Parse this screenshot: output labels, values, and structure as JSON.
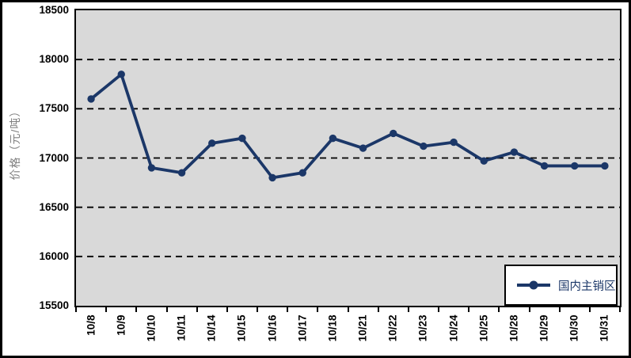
{
  "chart_data": {
    "type": "line",
    "title": "",
    "xlabel": "",
    "ylabel": "价格（元/吨）",
    "ylim": [
      15500,
      18500
    ],
    "ytick_step": 500,
    "yticks": [
      "18500",
      "18000",
      "17500",
      "17000",
      "16500",
      "16000",
      "15500"
    ],
    "categories": [
      "10/8",
      "10/9",
      "10/10",
      "10/11",
      "10/14",
      "10/15",
      "10/16",
      "10/17",
      "10/18",
      "10/21",
      "10/22",
      "10/23",
      "10/24",
      "10/25",
      "10/28",
      "10/29",
      "10/30",
      "10/31"
    ],
    "series": [
      {
        "name": "国内主销区",
        "color": "#1B3768",
        "values": [
          17600,
          17850,
          16900,
          16850,
          17150,
          17200,
          16800,
          16850,
          17200,
          17100,
          17250,
          17120,
          17160,
          16970,
          17060,
          16920,
          16920,
          16920
        ]
      }
    ],
    "grid": "horizontal-dashed",
    "gridline_color": "#000000",
    "plot_background": "#D9D9D9",
    "axis_color": "#000000",
    "ylabel_color": "#808080",
    "legend_position": "bottom-right-inside",
    "legend_background": "#ffffff"
  },
  "legend": {
    "label": "国内主销区"
  }
}
